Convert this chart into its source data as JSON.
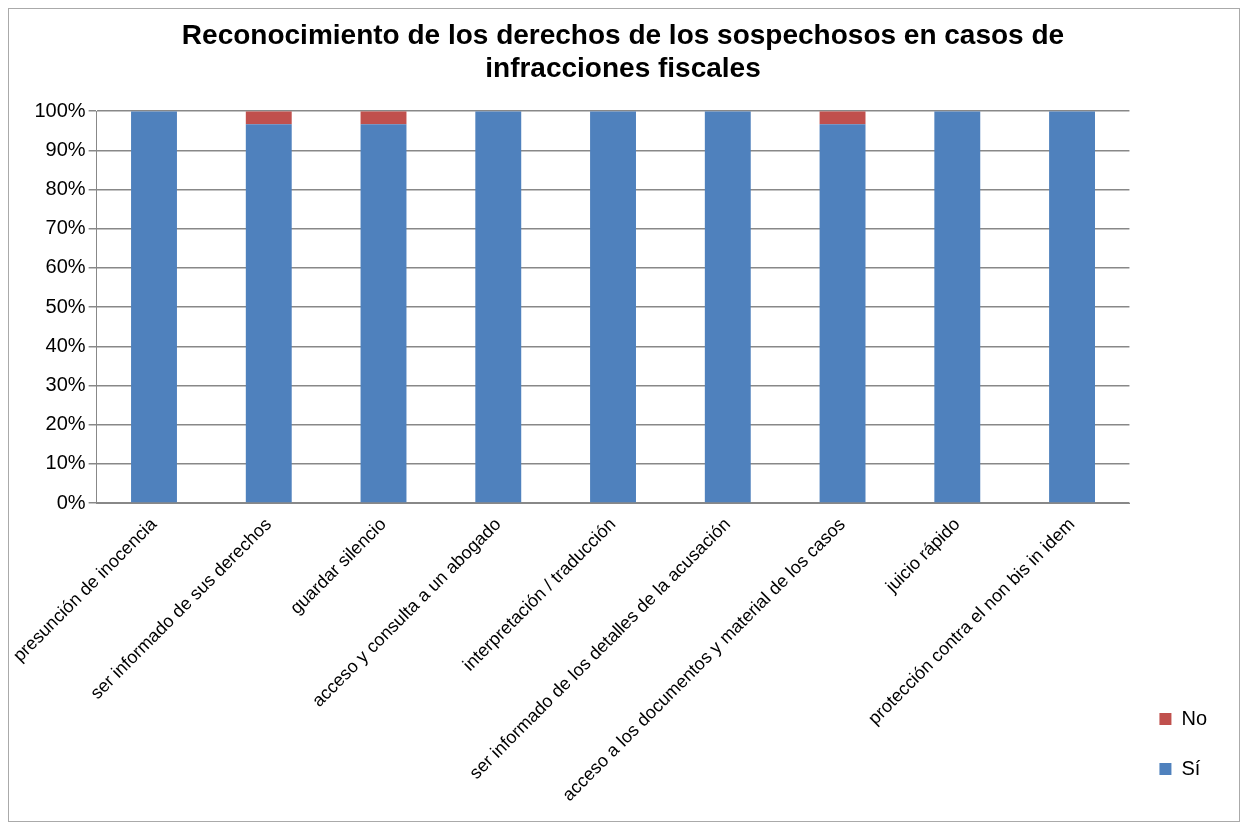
{
  "chart_data": {
    "type": "bar",
    "title": "Reconocimiento de los derechos de los sospechosos en casos de infracciones fiscales",
    "categories": [
      "presunción de inocencia",
      "ser informado de sus derechos",
      "guardar silencio",
      "acceso y consulta a un abogado",
      "interpretación / traducción",
      "ser informado de los detalles de la acusación",
      "acceso a los documentos y material de los casos",
      "juicio rápido",
      "protección contra el non bis in idem"
    ],
    "series": [
      {
        "name": "Sí",
        "color": "#4f81bd",
        "values": [
          100,
          96.7,
          96.7,
          100,
          100,
          100,
          96.7,
          100,
          100
        ]
      },
      {
        "name": "No",
        "color": "#c0504d",
        "values": [
          0,
          3.3,
          3.3,
          0,
          0,
          0,
          3.3,
          0,
          0
        ]
      }
    ],
    "stacked": true,
    "ylim": [
      0,
      100
    ],
    "yticks": [
      {
        "value": 0,
        "label": "0%"
      },
      {
        "value": 10,
        "label": "10%"
      },
      {
        "value": 20,
        "label": "20%"
      },
      {
        "value": 30,
        "label": "30%"
      },
      {
        "value": 40,
        "label": "40%"
      },
      {
        "value": 50,
        "label": "50%"
      },
      {
        "value": 60,
        "label": "60%"
      },
      {
        "value": 70,
        "label": "70%"
      },
      {
        "value": 80,
        "label": "80%"
      },
      {
        "value": 90,
        "label": "90%"
      },
      {
        "value": 100,
        "label": "100%"
      }
    ],
    "grid": "y",
    "legend": "right"
  }
}
